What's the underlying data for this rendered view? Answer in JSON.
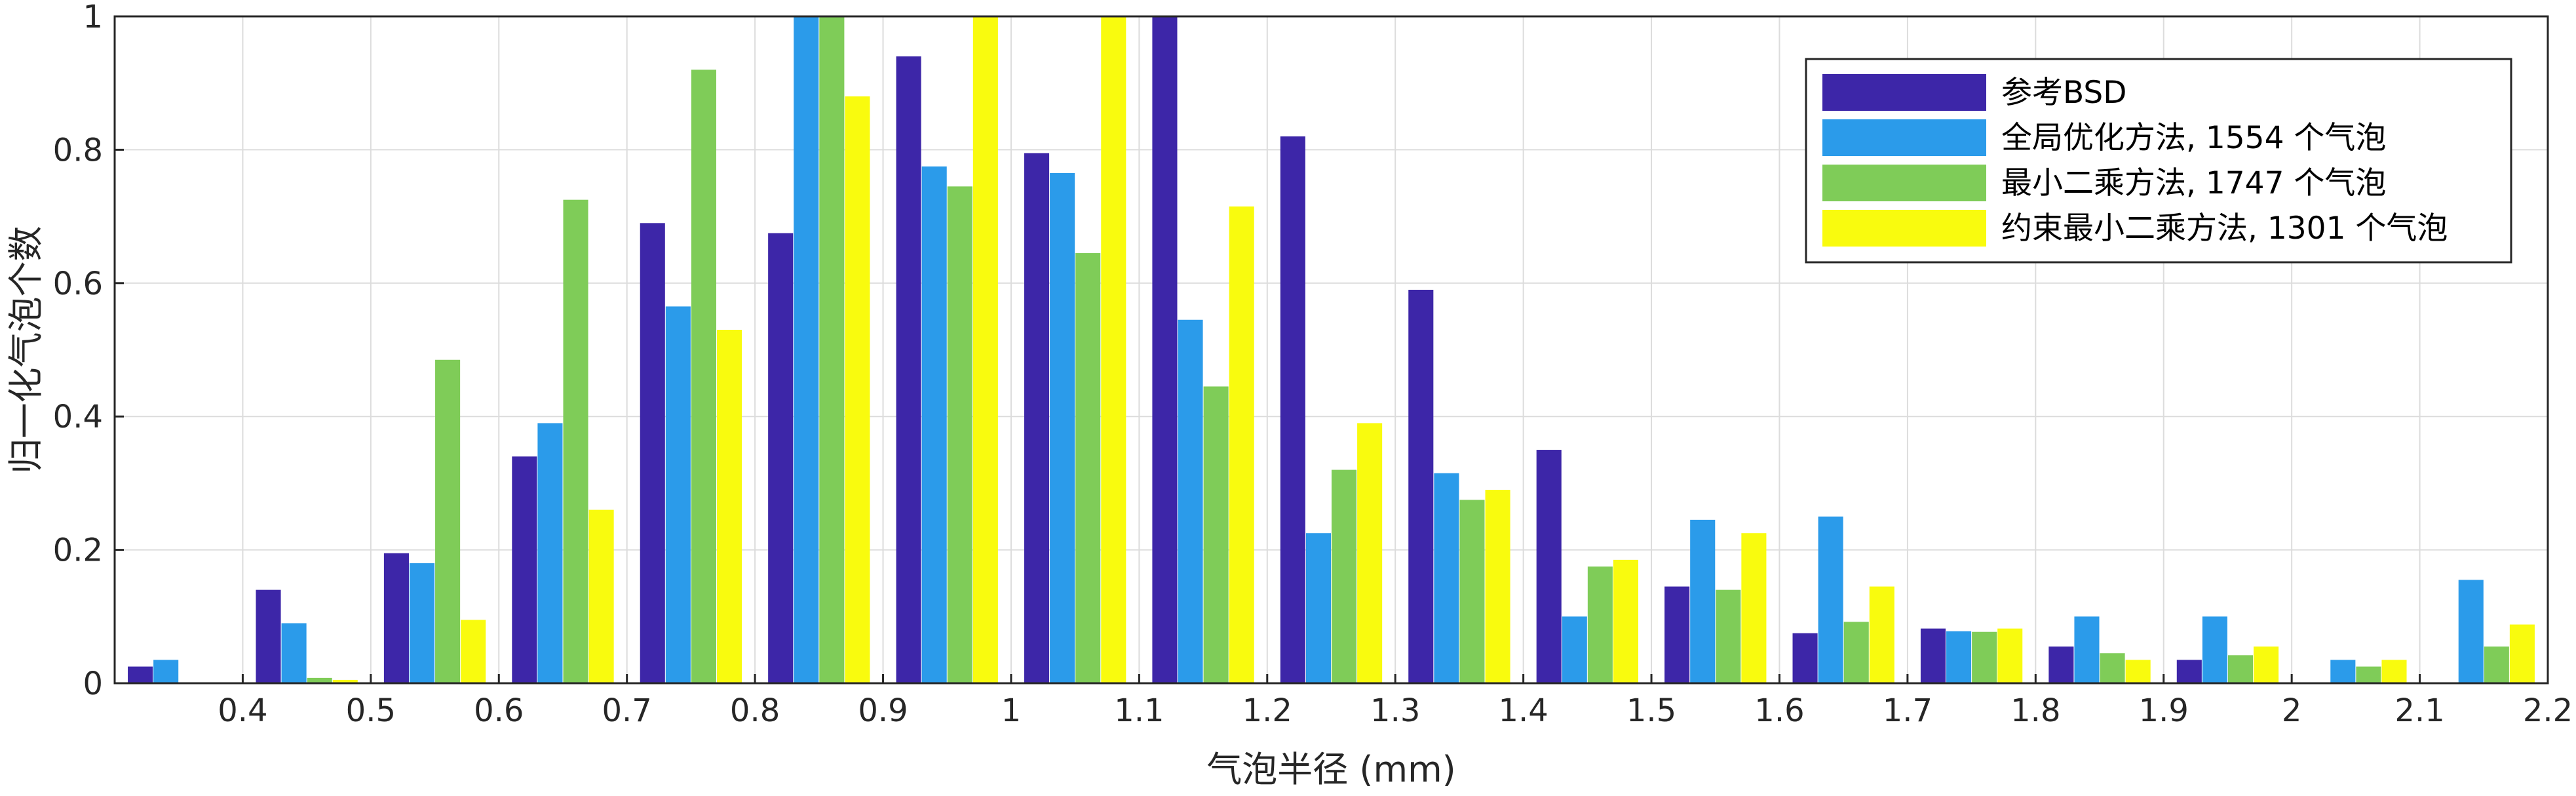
{
  "chart_data": {
    "type": "bar",
    "xlabel": "气泡半径 (mm)",
    "ylabel": "归一化气泡个数",
    "xlim": [
      0.3,
      2.2
    ],
    "ylim": [
      0,
      1
    ],
    "xticks": [
      "0.4",
      "0.5",
      "0.6",
      "0.7",
      "0.8",
      "0.9",
      "1",
      "1.1",
      "1.2",
      "1.3",
      "1.4",
      "1.5",
      "1.6",
      "1.7",
      "1.8",
      "1.9",
      "2",
      "2.1",
      "2.2"
    ],
    "yticks": [
      "0",
      "0.2",
      "0.4",
      "0.6",
      "0.8",
      "1"
    ],
    "grid": true,
    "legend_position": "top-right",
    "categories": [
      0.35,
      0.45,
      0.55,
      0.65,
      0.75,
      0.85,
      0.95,
      1.05,
      1.15,
      1.25,
      1.35,
      1.45,
      1.55,
      1.65,
      1.75,
      1.85,
      1.95,
      2.05,
      2.15
    ],
    "series": [
      {
        "name": "参考BSD",
        "color": "#3D26A8",
        "values": [
          0.025,
          0.14,
          0.195,
          0.34,
          0.69,
          0.675,
          0.94,
          0.795,
          1.0,
          0.82,
          0.59,
          0.35,
          0.145,
          0.075,
          0.082,
          0.055,
          0.035,
          0,
          0
        ]
      },
      {
        "name": "全局优化方法, 1554 个气泡",
        "color": "#2B9BEA",
        "values": [
          0.035,
          0.09,
          0.18,
          0.39,
          0.565,
          1.0,
          0.775,
          0.765,
          0.545,
          0.225,
          0.315,
          0.1,
          0.245,
          0.25,
          0.078,
          0.1,
          0.1,
          0.035,
          0.155
        ]
      },
      {
        "name": "最小二乘方法, 1747 个气泡",
        "color": "#7FCC58",
        "values": [
          0,
          0.008,
          0.485,
          0.725,
          0.92,
          1.0,
          0.745,
          0.645,
          0.445,
          0.32,
          0.275,
          0.175,
          0.14,
          0.092,
          0.077,
          0.045,
          0.042,
          0.025,
          0.055
        ]
      },
      {
        "name": "约束最小二乘方法, 1301 个气泡",
        "color": "#F9FB0E",
        "values": [
          0,
          0.005,
          0.095,
          0.26,
          0.53,
          0.88,
          1.0,
          1.0,
          0.715,
          0.39,
          0.29,
          0.185,
          0.225,
          0.145,
          0.082,
          0.035,
          0.055,
          0.035,
          0.088
        ]
      }
    ]
  }
}
